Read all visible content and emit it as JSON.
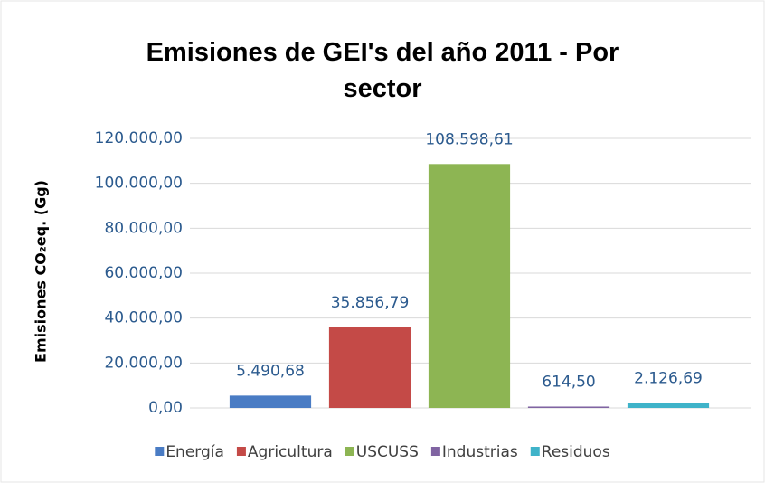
{
  "chart_data": {
    "type": "bar",
    "title": "Emisiones de GEI's del año 2011 - Por sector",
    "y_label": "Emisiones CO₂eq. (Gg)",
    "categories": [
      "Energía",
      "Agricultura",
      "USCUSS",
      "Industrias",
      "Residuos"
    ],
    "values": [
      5490.68,
      35856.79,
      108598.61,
      614.5,
      2126.69
    ],
    "value_labels": [
      "5.490,68",
      "35.856,79",
      "108.598,61",
      "614,50",
      "2.126,69"
    ],
    "colors": [
      "#4a7cc4",
      "#c44a47",
      "#8db553",
      "#8064a2",
      "#3fb3c9"
    ],
    "ylim": [
      0,
      120000
    ],
    "yticks": [
      {
        "value": 0,
        "label": "0,00"
      },
      {
        "value": 20000,
        "label": "20.000,00"
      },
      {
        "value": 40000,
        "label": "40.000,00"
      },
      {
        "value": 60000,
        "label": "60.000,00"
      },
      {
        "value": 80000,
        "label": "80.000,00"
      },
      {
        "value": 100000,
        "label": "100.000,00"
      },
      {
        "value": 120000,
        "label": "120.000,00"
      }
    ],
    "grid": true,
    "legend": "bottom"
  }
}
